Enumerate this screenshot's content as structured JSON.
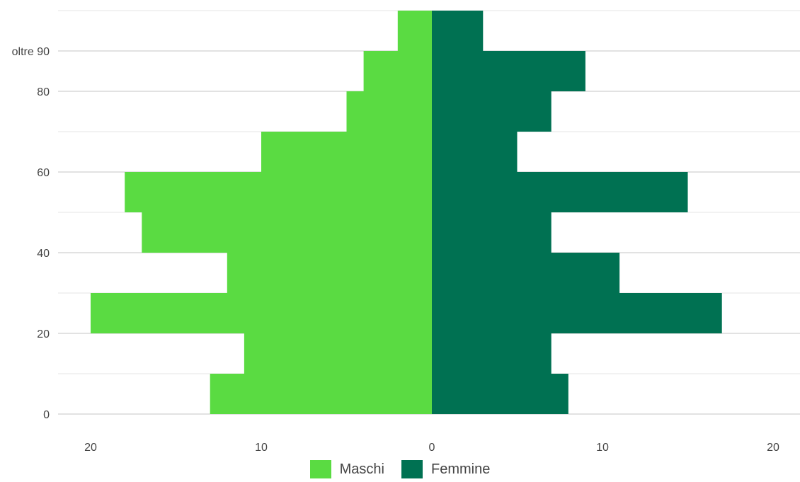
{
  "chart_data": {
    "type": "bar",
    "orientation": "horizontal",
    "layout": "population-pyramid",
    "categories": [
      "0-10",
      "10-20",
      "20-30",
      "30-40",
      "40-50",
      "50-60",
      "60-70",
      "70-80",
      "80-90",
      "oltre 90"
    ],
    "series": [
      {
        "name": "Maschi",
        "color": "#5ADB42",
        "side": "left",
        "values": [
          13,
          11,
          20,
          12,
          17,
          18,
          10,
          5,
          4,
          2
        ]
      },
      {
        "name": "Femmine",
        "color": "#007152",
        "side": "right",
        "values": [
          8,
          7,
          17,
          11,
          7,
          15,
          5,
          7,
          9,
          3
        ]
      }
    ],
    "y_range": [
      0,
      100
    ],
    "y_ticks": [
      {
        "value": 0,
        "label": "0"
      },
      {
        "value": 20,
        "label": "20"
      },
      {
        "value": 40,
        "label": "40"
      },
      {
        "value": 60,
        "label": "60"
      },
      {
        "value": 80,
        "label": "80"
      },
      {
        "value": 90,
        "label": "oltre 90"
      }
    ],
    "x_range": [
      -20,
      20
    ],
    "x_ticks": [
      {
        "value": -20,
        "label": "20"
      },
      {
        "value": -10,
        "label": "10"
      },
      {
        "value": 0,
        "label": "0"
      },
      {
        "value": 10,
        "label": "10"
      },
      {
        "value": 20,
        "label": "20"
      }
    ],
    "grid": true,
    "legend_position": "bottom",
    "title": "",
    "xlabel": "",
    "ylabel": ""
  }
}
